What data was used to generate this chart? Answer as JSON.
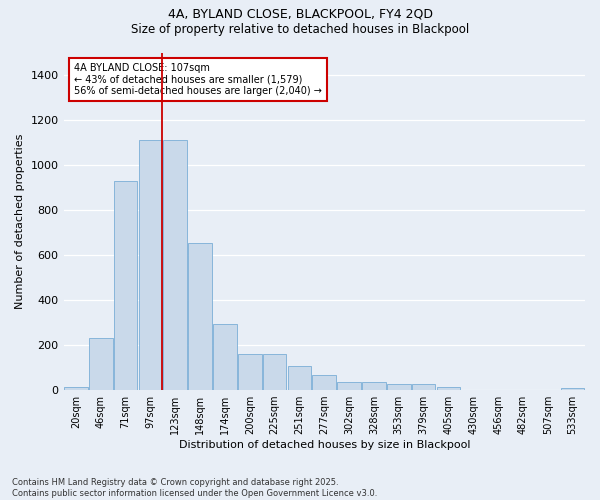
{
  "title_line1": "4A, BYLAND CLOSE, BLACKPOOL, FY4 2QD",
  "title_line2": "Size of property relative to detached houses in Blackpool",
  "xlabel": "Distribution of detached houses by size in Blackpool",
  "ylabel": "Number of detached properties",
  "bar_color": "#c9d9ea",
  "bar_edge_color": "#7aaed6",
  "background_color": "#e8eef6",
  "annotation_box_color": "#cc0000",
  "annotation_line_color": "#cc0000",
  "vline_x_index": 3.5,
  "annotation_text": "4A BYLAND CLOSE: 107sqm\n← 43% of detached houses are smaller (1,579)\n56% of semi-detached houses are larger (2,040) →",
  "footer": "Contains HM Land Registry data © Crown copyright and database right 2025.\nContains public sector information licensed under the Open Government Licence v3.0.",
  "categories": [
    "20sqm",
    "46sqm",
    "71sqm",
    "97sqm",
    "123sqm",
    "148sqm",
    "174sqm",
    "200sqm",
    "225sqm",
    "251sqm",
    "277sqm",
    "302sqm",
    "328sqm",
    "353sqm",
    "379sqm",
    "405sqm",
    "430sqm",
    "456sqm",
    "482sqm",
    "507sqm",
    "533sqm"
  ],
  "values": [
    15,
    230,
    930,
    1110,
    1110,
    655,
    295,
    160,
    160,
    107,
    68,
    35,
    35,
    25,
    25,
    15,
    0,
    0,
    0,
    0,
    10
  ],
  "ylim": [
    0,
    1500
  ],
  "yticks": [
    0,
    200,
    400,
    600,
    800,
    1000,
    1200,
    1400
  ],
  "title_fontsize": 9,
  "axis_label_fontsize": 8,
  "tick_fontsize": 7,
  "footer_fontsize": 6
}
